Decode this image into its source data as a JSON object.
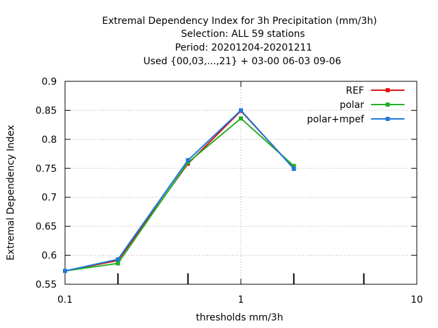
{
  "chart_data": {
    "type": "line",
    "title_lines": [
      "Extremal Dependency Index  for 3h Precipitation (mm/3h)",
      "Selection: ALL     59 stations",
      "Period: 20201204-20201211",
      "Used {00,03,...,21} + 03-00 06-03 09-06"
    ],
    "xlabel": "thresholds mm/3h",
    "ylabel": "Extremal Dependency Index",
    "x_scale": "log",
    "xlim": [
      0.1,
      10
    ],
    "ylim": [
      0.55,
      0.9
    ],
    "x_ticks": [
      0.1,
      1,
      10
    ],
    "x_tick_labels": [
      "0.1",
      "1",
      "10"
    ],
    "x_minor_ticks": [
      0.2,
      0.5,
      2,
      5
    ],
    "y_ticks": [
      0.55,
      0.6,
      0.65,
      0.7,
      0.75,
      0.8,
      0.85,
      0.9
    ],
    "y_tick_labels": [
      "0.55",
      "0.6",
      "0.65",
      "0.7",
      "0.75",
      "0.8",
      "0.85",
      "0.9"
    ],
    "grid": true,
    "legend_position": "top-right",
    "x": [
      0.1,
      0.2,
      0.5,
      1,
      2
    ],
    "series": [
      {
        "name": "REF",
        "color": "#e01010",
        "values": [
          0.573,
          0.591,
          0.758,
          0.849,
          0.75
        ]
      },
      {
        "name": "polar",
        "color": "#20b020",
        "values": [
          0.573,
          0.586,
          0.76,
          0.836,
          0.754
        ]
      },
      {
        "name": "polar+mpef",
        "color": "#1f78d8",
        "values": [
          0.573,
          0.593,
          0.764,
          0.85,
          0.749
        ]
      }
    ]
  }
}
